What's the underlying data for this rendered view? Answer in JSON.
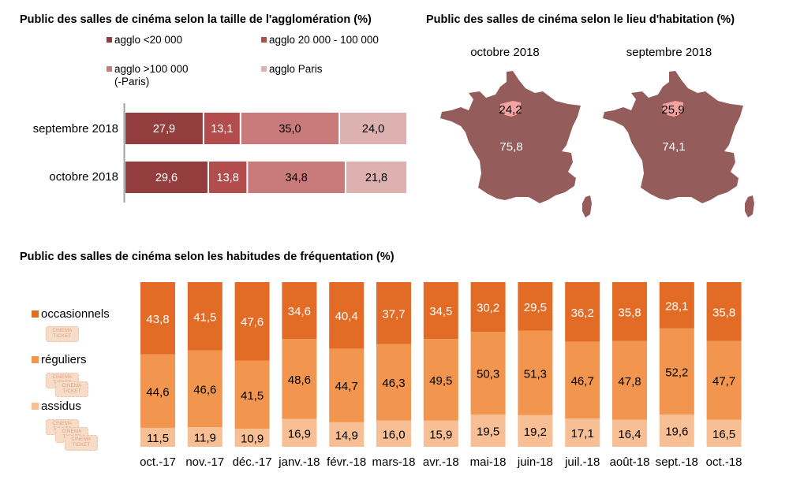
{
  "chart_data": [
    {
      "type": "bar",
      "orientation": "horizontal-stacked-100",
      "title": "Public des salles de cinéma selon la taille de l'agglomération (%)",
      "categories": [
        "septembre 2018",
        "octobre 2018"
      ],
      "series": [
        {
          "name": "agglo <20 000",
          "color": "#943d3e",
          "values": [
            27.9,
            29.6
          ],
          "labels": [
            "27,9",
            "29,6"
          ],
          "label_color": "#ffffff"
        },
        {
          "name": "agglo 20 000 - 100 000",
          "color": "#b34c4c",
          "values": [
            13.1,
            13.8
          ],
          "labels": [
            "13,1",
            "13,8"
          ],
          "label_color": "#ffffff"
        },
        {
          "name": "agglo >100 000 (-Paris)",
          "color": "#c97a7a",
          "values": [
            35.0,
            34.8
          ],
          "labels": [
            "35,0",
            "34,8"
          ],
          "label_color": "#000000"
        },
        {
          "name": "agglo Paris",
          "color": "#deb1b1",
          "values": [
            24.0,
            21.8
          ],
          "labels": [
            "24,0",
            "21,8"
          ],
          "label_color": "#000000"
        }
      ],
      "legend": {
        "placement": "top",
        "items": [
          {
            "label_line1": "agglo <20 000",
            "label_line2": ""
          },
          {
            "label_line1": "agglo 20 000 - 100 000",
            "label_line2": ""
          },
          {
            "label_line1": "agglo >100 000",
            "label_line2": "(-Paris)"
          },
          {
            "label_line1": "agglo Paris",
            "label_line2": ""
          }
        ]
      }
    },
    {
      "type": "map",
      "title": "Public des salles de cinéma  selon le lieu d'habitation (%)",
      "panels": [
        {
          "label": "octobre 2018",
          "paris_value": 24.2,
          "paris_label": "24,2",
          "rest_value": 75.8,
          "rest_label": "75,8"
        },
        {
          "label": "septembre 2018",
          "paris_value": 25.9,
          "paris_label": "25,9",
          "rest_value": 74.1,
          "rest_label": "74,1"
        }
      ],
      "colors": {
        "rest": "#955c5c",
        "paris": "#f4a3a0"
      }
    },
    {
      "type": "bar",
      "orientation": "vertical-stacked-100",
      "title": "Public des salles de cinéma selon les habitudes de fréquentation (%)",
      "categories": [
        "oct.-17",
        "nov.-17",
        "déc.-17",
        "janv.-18",
        "févr.-18",
        "mars-18",
        "avr.-18",
        "mai-18",
        "juin-18",
        "juil.-18",
        "août-18",
        "sept.-18",
        "oct.-18"
      ],
      "series": [
        {
          "name": "assidus",
          "color": "#f8bf94",
          "label_color": "#000000",
          "values": [
            11.5,
            11.9,
            10.9,
            16.9,
            14.9,
            16.0,
            15.9,
            19.5,
            19.2,
            17.1,
            16.4,
            19.6,
            16.5
          ],
          "labels": [
            "11,5",
            "11,9",
            "10,9",
            "16,9",
            "14,9",
            "16,0",
            "15,9",
            "19,5",
            "19,2",
            "17,1",
            "16,4",
            "19,6",
            "16,5"
          ]
        },
        {
          "name": "réguliers",
          "color": "#f2964f",
          "label_color": "#000000",
          "values": [
            44.6,
            46.6,
            41.5,
            48.6,
            44.7,
            46.3,
            49.5,
            50.3,
            51.3,
            46.7,
            47.8,
            52.2,
            47.7
          ],
          "labels": [
            "44,6",
            "46,6",
            "41,5",
            "48,6",
            "44,7",
            "46,3",
            "49,5",
            "50,3",
            "51,3",
            "46,7",
            "47,8",
            "52,2",
            "47,7"
          ]
        },
        {
          "name": "occasionnels",
          "color": "#e26b26",
          "label_color": "#ffffff",
          "values": [
            43.8,
            41.5,
            47.6,
            34.6,
            40.4,
            37.7,
            34.5,
            30.2,
            29.5,
            36.2,
            35.8,
            28.1,
            35.8
          ],
          "labels": [
            "43,8",
            "41,5",
            "47,6",
            "34,6",
            "40,4",
            "37,7",
            "34,5",
            "30,2",
            "29,5",
            "36,2",
            "35,8",
            "28,1",
            "35,8"
          ]
        }
      ],
      "legend": {
        "placement": "left",
        "items": [
          {
            "label": "occasionnels",
            "icon": "ticket-icon",
            "tickets": 1
          },
          {
            "label": "réguliers",
            "icon": "ticket-icon",
            "tickets": 2
          },
          {
            "label": "assidus",
            "icon": "ticket-icon",
            "tickets": 3
          }
        ],
        "ticket_text": [
          "CINEMA",
          "TICKET"
        ]
      }
    }
  ]
}
